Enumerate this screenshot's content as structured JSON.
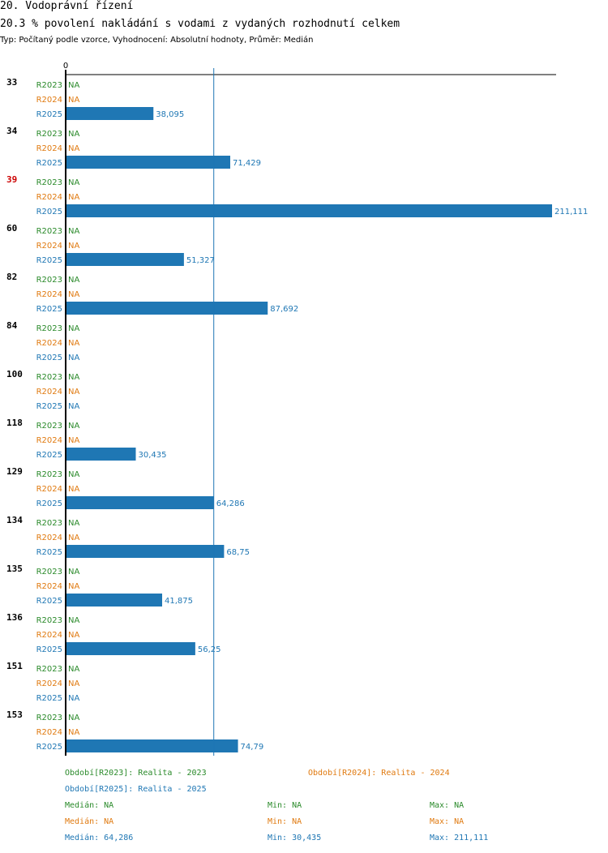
{
  "header": {
    "title": "20. Vodoprávní řízení",
    "subtitle": "20.3 % povolení nakládání s vodami z vydaných rozhodnutí celkem",
    "meta": "Typ: Počítaný podle vzorce, Vyhodnocení: Absolutní hodnoty, Průměr: Medián"
  },
  "colors": {
    "R2023": "#2a8a2a",
    "R2024": "#e07a10",
    "R2025": "#1f77b4",
    "highlight": "#cc0000",
    "bar": "#1f77b4",
    "axis": "#000000"
  },
  "chart_data": {
    "type": "bar",
    "orientation": "horizontal",
    "x_zero_label": "0",
    "xlim": [
      0,
      211.111
    ],
    "reference_line": {
      "label": "Medián R2025",
      "value": 64.286
    },
    "series_names": [
      "R2023",
      "R2024",
      "R2025"
    ],
    "na_label": "NA",
    "groups": [
      {
        "label": "33",
        "highlight": false,
        "values": [
          null,
          null,
          38.095
        ],
        "labels": [
          "NA",
          "NA",
          "38,095"
        ]
      },
      {
        "label": "34",
        "highlight": false,
        "values": [
          null,
          null,
          71.429
        ],
        "labels": [
          "NA",
          "NA",
          "71,429"
        ]
      },
      {
        "label": "39",
        "highlight": true,
        "values": [
          null,
          null,
          211.111
        ],
        "labels": [
          "NA",
          "NA",
          "211,111"
        ]
      },
      {
        "label": "60",
        "highlight": false,
        "values": [
          null,
          null,
          51.327
        ],
        "labels": [
          "NA",
          "NA",
          "51,327"
        ]
      },
      {
        "label": "82",
        "highlight": false,
        "values": [
          null,
          null,
          87.692
        ],
        "labels": [
          "NA",
          "NA",
          "87,692"
        ]
      },
      {
        "label": "84",
        "highlight": false,
        "values": [
          null,
          null,
          null
        ],
        "labels": [
          "NA",
          "NA",
          "NA"
        ]
      },
      {
        "label": "100",
        "highlight": false,
        "values": [
          null,
          null,
          null
        ],
        "labels": [
          "NA",
          "NA",
          "NA"
        ]
      },
      {
        "label": "118",
        "highlight": false,
        "values": [
          null,
          null,
          30.435
        ],
        "labels": [
          "NA",
          "NA",
          "30,435"
        ]
      },
      {
        "label": "129",
        "highlight": false,
        "values": [
          null,
          null,
          64.286
        ],
        "labels": [
          "NA",
          "NA",
          "64,286"
        ]
      },
      {
        "label": "134",
        "highlight": false,
        "values": [
          null,
          null,
          68.75
        ],
        "labels": [
          "NA",
          "NA",
          "68,75"
        ]
      },
      {
        "label": "135",
        "highlight": false,
        "values": [
          null,
          null,
          41.875
        ],
        "labels": [
          "NA",
          "NA",
          "41,875"
        ]
      },
      {
        "label": "136",
        "highlight": false,
        "values": [
          null,
          null,
          56.25
        ],
        "labels": [
          "NA",
          "NA",
          "56,25"
        ]
      },
      {
        "label": "151",
        "highlight": false,
        "values": [
          null,
          null,
          null
        ],
        "labels": [
          "NA",
          "NA",
          "NA"
        ]
      },
      {
        "label": "153",
        "highlight": false,
        "values": [
          null,
          null,
          74.79
        ],
        "labels": [
          "NA",
          "NA",
          "74,79"
        ]
      }
    ]
  },
  "legend": {
    "periods": {
      "R2023": "Období[R2023]: Realita - 2023",
      "R2024": "Období[R2024]: Realita - 2024",
      "R2025": "Období[R2025]: Realita - 2025"
    },
    "stats": {
      "R2023": {
        "median": "Medián: NA",
        "min": "Min: NA",
        "max": "Max: NA"
      },
      "R2024": {
        "median": "Medián: NA",
        "min": "Min: NA",
        "max": "Max: NA"
      },
      "R2025": {
        "median": "Medián: 64,286",
        "min": "Min: 30,435",
        "max": "Max: 211,111"
      }
    }
  }
}
